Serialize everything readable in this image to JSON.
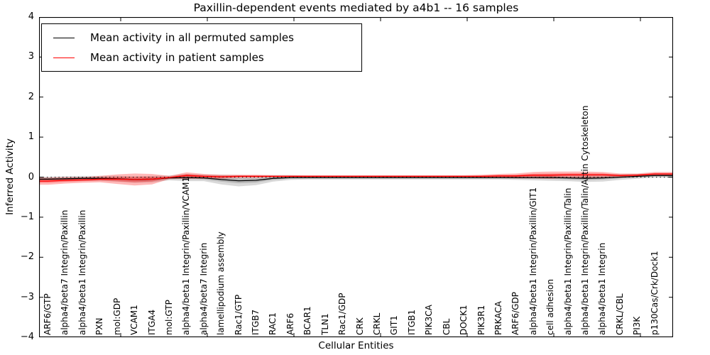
{
  "title": "Paxillin-dependent events mediated by a4b1 -- 16 samples",
  "axes": {
    "ylabel": "Inferred Activity",
    "xlabel": "Cellular Entities",
    "ytick_labels": [
      "4",
      "3",
      "2",
      "1",
      "0",
      "−1",
      "−2",
      "−3",
      "−4"
    ]
  },
  "legend": {
    "items": [
      {
        "label": "Mean activity in all permuted samples",
        "color": "#000000"
      },
      {
        "label": "Mean activity in patient samples",
        "color": "#ff0000"
      }
    ]
  },
  "chart_data": {
    "type": "line",
    "title": "Paxillin-dependent events mediated by a4b1 -- 16 samples",
    "xlabel": "Cellular Entities",
    "ylabel": "Inferred Activity",
    "ylim": [
      -4,
      4
    ],
    "yticks": [
      4,
      3,
      2,
      1,
      0,
      -1,
      -2,
      -3,
      -4
    ],
    "grid": false,
    "legend_position": "upper left",
    "zero_reference_line": {
      "y": 0,
      "style": "dotted",
      "color": "#000000"
    },
    "categories": [
      "ARF6/GTP",
      "alpha4/beta7 Integrin/Paxillin",
      "alpha4/beta1 Integrin/Paxillin",
      "PXN",
      "mol:GDP",
      "VCAM1",
      "ITGA4",
      "mol:GTP",
      "alpha4/beta1 Integrin/Paxillin/VCAM1",
      "alpha4/beta7 Integrin",
      "lamellipodium assembly",
      "Rac1/GTP",
      "ITGB7",
      "RAC1",
      "ARF6",
      "BCAR1",
      "TLN1",
      "Rac1/GDP",
      "CRK",
      "CRKL",
      "GIT1",
      "ITGB1",
      "PIK3CA",
      "CBL",
      "DOCK1",
      "PIK3R1",
      "PRKACA",
      "ARF6/GDP",
      "alpha4/beta1 Integrin/Paxillin/GIT1",
      "cell adhesion",
      "alpha4/beta1 Integrin/Paxillin/Talin",
      "alpha4/beta1 Integrin/Paxillin/Talin/Actin Cytoskeleton",
      "alpha4/beta1 Integrin",
      "CRKL/CBL",
      "PI3K",
      "p130Cas/Crk/Dock1"
    ],
    "series": [
      {
        "name": "Mean activity in all permuted samples",
        "color": "#000000",
        "band_color": "rgba(0,0,0,0.15)",
        "mean": [
          -0.05,
          -0.04,
          -0.03,
          -0.03,
          -0.04,
          -0.06,
          -0.05,
          -0.02,
          -0.01,
          -0.02,
          -0.06,
          -0.09,
          -0.08,
          -0.03,
          -0.01,
          -0.01,
          -0.01,
          -0.01,
          -0.01,
          -0.01,
          -0.01,
          -0.01,
          -0.01,
          -0.01,
          -0.01,
          -0.01,
          -0.01,
          -0.01,
          -0.01,
          -0.01,
          -0.02,
          -0.03,
          -0.02,
          0.0,
          0.02,
          0.04
        ],
        "std": [
          0.06,
          0.06,
          0.06,
          0.06,
          0.07,
          0.08,
          0.08,
          0.06,
          0.09,
          0.08,
          0.12,
          0.14,
          0.12,
          0.08,
          0.06,
          0.05,
          0.05,
          0.05,
          0.05,
          0.05,
          0.05,
          0.05,
          0.05,
          0.05,
          0.05,
          0.05,
          0.05,
          0.06,
          0.07,
          0.08,
          0.08,
          0.09,
          0.09,
          0.07,
          0.06,
          0.05
        ]
      },
      {
        "name": "Mean activity in patient samples",
        "color": "#ff0000",
        "band_color": "rgba(255,0,0,0.28)",
        "mean": [
          -0.1,
          -0.08,
          -0.07,
          -0.05,
          -0.05,
          -0.06,
          -0.05,
          -0.01,
          0.04,
          0.02,
          0.01,
          0.02,
          0.02,
          0.02,
          0.02,
          0.02,
          0.02,
          0.02,
          0.02,
          0.02,
          0.02,
          0.02,
          0.02,
          0.02,
          0.02,
          0.02,
          0.03,
          0.03,
          0.05,
          0.05,
          0.06,
          0.06,
          0.06,
          0.04,
          0.05,
          0.08
        ],
        "std": [
          0.09,
          0.08,
          0.07,
          0.08,
          0.12,
          0.15,
          0.13,
          0.04,
          0.08,
          0.06,
          0.05,
          0.04,
          0.04,
          0.03,
          0.03,
          0.03,
          0.03,
          0.03,
          0.03,
          0.03,
          0.03,
          0.03,
          0.03,
          0.03,
          0.03,
          0.04,
          0.05,
          0.06,
          0.08,
          0.09,
          0.08,
          0.08,
          0.07,
          0.05,
          0.04,
          0.05
        ]
      }
    ]
  }
}
